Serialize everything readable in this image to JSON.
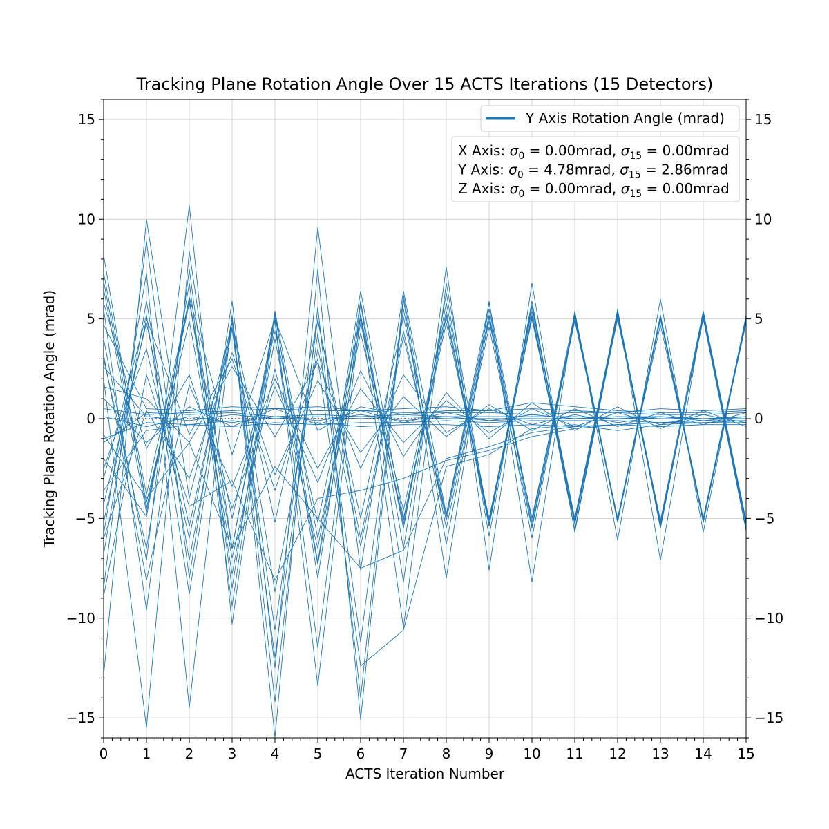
{
  "chart_data": {
    "type": "line",
    "title": "Tracking Plane Rotation Angle Over 15 ACTS Iterations (15 Detectors)",
    "xlabel": "ACTS Iteration Number",
    "ylabel": "Tracking Plane Rotation Angle (mrad)",
    "xlim": [
      0,
      15
    ],
    "ylim": [
      -16,
      16
    ],
    "xticks": [
      "0",
      "1",
      "2",
      "3",
      "4",
      "5",
      "6",
      "7",
      "8",
      "9",
      "10",
      "11",
      "12",
      "13",
      "14",
      "15"
    ],
    "yticks": [
      "−15",
      "−10",
      "−5",
      "0",
      "5",
      "10",
      "15"
    ],
    "yticks_values": [
      -15,
      -10,
      -5,
      0,
      5,
      10,
      15
    ],
    "grid": true,
    "right_axis_mirrors_left": true,
    "line_color": "#1f77b4",
    "legend": {
      "placement": "top-right",
      "entries": [
        {
          "label": "Y Axis Rotation Angle (mrad)",
          "color": "#1f77b4"
        }
      ]
    },
    "stats_box": {
      "placement": "top-right",
      "lines": [
        {
          "axis": "X Axis",
          "sigma0": "0.00",
          "sigma15": "0.00",
          "unit": "mrad"
        },
        {
          "axis": "Y Axis",
          "sigma0": "4.78",
          "sigma15": "2.86",
          "unit": "mrad"
        },
        {
          "axis": "Z Axis",
          "sigma0": "0.00",
          "sigma15": "0.00",
          "unit": "mrad"
        }
      ]
    },
    "series": [
      {
        "values": [
          8.2,
          -4.5,
          5.8,
          -5.0,
          4.4,
          -5.2,
          5.0,
          -5.3,
          5.2,
          -5.4,
          5.6,
          -5.2,
          5.3,
          -5.3,
          5.0,
          -5.6
        ]
      },
      {
        "values": [
          -12.9,
          10.0,
          -4.0,
          4.8,
          -5.2,
          4.9,
          -5.0,
          5.1,
          -4.9,
          5.2,
          -5.0,
          5.0,
          -5.1,
          5.2,
          -5.0,
          5.1
        ]
      },
      {
        "values": [
          6.5,
          -4.7,
          6.0,
          -6.5,
          5.2,
          -7.2,
          6.4,
          -5.0,
          4.8,
          -5.0,
          5.4,
          -5.6,
          5.4,
          -5.5,
          5.3,
          -5.5
        ]
      },
      {
        "values": [
          -8.5,
          8.9,
          -8.0,
          5.9,
          -12.5,
          9.6,
          -7.6,
          6.4,
          -4.8,
          5.8,
          -5.2,
          5.3,
          -5.0,
          5.1,
          -5.1,
          5.0
        ]
      },
      {
        "values": [
          4.0,
          -7.1,
          10.7,
          -10.3,
          5.0,
          -11.5,
          5.8,
          -8.2,
          7.6,
          -7.6,
          6.8,
          -5.7,
          5.5,
          -7.1,
          5.3,
          -5.3
        ]
      },
      {
        "values": [
          -5.8,
          7.3,
          -14.5,
          5.2,
          -16.0,
          7.5,
          -15.1,
          6.0,
          -8.0,
          5.9,
          -8.2,
          5.4,
          -6.1,
          6.0,
          -5.7,
          5.2
        ]
      },
      {
        "values": [
          2.0,
          -15.5,
          8.4,
          -6.5,
          4.9,
          -13.4,
          5.3,
          -10.5,
          6.8,
          -5.3,
          5.7,
          -5.0,
          5.4,
          -5.4,
          5.2,
          -5.6
        ]
      },
      {
        "values": [
          5.5,
          -9.6,
          7.5,
          -8.5,
          5.4,
          -6.0,
          4.3,
          -5.1,
          5.1,
          -5.1,
          5.1,
          -5.3,
          5.2,
          -5.1,
          5.4,
          -5.2
        ]
      },
      {
        "values": [
          -3.0,
          5.2,
          -8.8,
          5.0,
          -14.2,
          5.6,
          -14.0,
          6.2,
          -6.3,
          5.1,
          -6.0,
          5.2,
          -5.2,
          5.0,
          -5.2,
          4.9
        ]
      },
      {
        "values": [
          3.0,
          -6.5,
          6.8,
          -9.4,
          5.3,
          -8.0,
          5.9,
          -6.5,
          6.3,
          -5.9,
          5.9,
          -5.6,
          5.1,
          -5.4,
          5.1,
          -5.2
        ]
      },
      {
        "values": [
          -6.8,
          5.9,
          -7.1,
          4.5,
          -12.0,
          4.3,
          -11.2,
          5.5,
          -5.5,
          4.6,
          -5.5,
          4.9,
          -5.0,
          4.7,
          -5.0,
          4.8
        ]
      },
      {
        "values": [
          6.9,
          -4.2,
          4.9,
          -7.0,
          2.5,
          -6.5,
          5.2,
          -5.5,
          5.8,
          -5.1,
          5.0,
          -5.0,
          5.3,
          -5.2,
          5.1,
          -5.3
        ]
      },
      {
        "values": [
          -2.5,
          3.5,
          -6.0,
          5.0,
          -8.7,
          3.5,
          -6.4,
          4.1,
          -4.9,
          5.5,
          -5.4,
          5.1,
          -5.0,
          5.1,
          -5.2,
          5.0
        ]
      },
      {
        "values": [
          7.3,
          -3.8,
          6.0,
          -7.8,
          4.0,
          -7.3,
          4.8,
          -4.6,
          5.4,
          -5.3,
          5.2,
          -5.1,
          5.0,
          -5.3,
          5.2,
          -5.1
        ]
      },
      {
        "values": [
          -4.3,
          4.8,
          -5.4,
          4.6,
          -10.6,
          5.0,
          -6.0,
          4.4,
          -5.1,
          4.9,
          -5.0,
          5.0,
          -5.1,
          5.0,
          -5.0,
          5.1
        ]
      },
      {
        "values": [
          5.8,
          -1.5,
          2.2,
          -4.5,
          1.6,
          -3.2,
          2.4,
          -1.9,
          1.3,
          -1.0,
          0.8,
          -0.6,
          0.6,
          -0.5,
          0.4,
          -0.4
        ]
      },
      {
        "values": [
          -6.0,
          0.4,
          -3.0,
          3.3,
          -2.8,
          1.9,
          -1.7,
          1.1,
          -0.9,
          0.7,
          -0.6,
          0.5,
          -0.4,
          0.3,
          -0.3,
          0.3
        ]
      },
      {
        "values": [
          3.2,
          -8.1,
          1.7,
          -3.4,
          2.0,
          -2.5,
          1.5,
          -1.2,
          0.9,
          -0.7,
          0.5,
          -0.4,
          0.3,
          -0.3,
          0.2,
          -0.2
        ]
      },
      {
        "values": [
          -8.9,
          2.2,
          -4.4,
          -3.1,
          -8.1,
          -4.0,
          -3.6,
          -3.0,
          -2.1,
          -1.6,
          -0.9,
          -0.5,
          -0.3,
          -0.2,
          -0.2,
          -0.1
        ]
      },
      {
        "values": [
          1.0,
          -1.2,
          0.6,
          -0.4,
          0.5,
          -0.3,
          0.4,
          -0.2,
          0.3,
          -0.1,
          0.2,
          0.0,
          0.1,
          0.1,
          0.0,
          0.1
        ]
      },
      {
        "values": [
          -1.2,
          0.3,
          0.2,
          0.3,
          0.1,
          0.2,
          0.1,
          0.2,
          0.1,
          0.1,
          0.1,
          0.1,
          0.0,
          0.1,
          0.0,
          0.0
        ]
      },
      {
        "values": [
          4.7,
          0.5,
          0.4,
          0.6,
          0.5,
          0.4,
          0.4,
          0.3,
          0.3,
          0.3,
          0.2,
          0.3,
          0.3,
          0.2,
          0.2,
          0.3
        ]
      },
      {
        "values": [
          -3.6,
          -0.6,
          -0.3,
          -0.4,
          -0.2,
          -0.3,
          -0.2,
          -0.2,
          -0.1,
          -0.2,
          -0.1,
          -0.1,
          -0.1,
          -0.2,
          -0.1,
          -0.1
        ]
      },
      {
        "values": [
          2.6,
          0.1,
          -0.1,
          0.2,
          0.0,
          0.1,
          0.0,
          0.1,
          0.0,
          0.0,
          0.0,
          0.0,
          0.1,
          0.0,
          0.0,
          0.0
        ]
      },
      {
        "values": [
          -0.8,
          -4.0,
          -1.2,
          -6.5,
          -2.4,
          -5.0,
          -7.5,
          -6.6,
          -2.0,
          -1.4,
          -0.7,
          -0.4,
          -0.3,
          -0.2,
          -0.1,
          -0.1
        ]
      },
      {
        "values": [
          0.5,
          0.2,
          0.3,
          0.4,
          0.5,
          0.6,
          0.4,
          0.5,
          0.6,
          0.4,
          0.5,
          0.4,
          0.3,
          0.5,
          0.4,
          0.5
        ]
      },
      {
        "values": [
          -1.0,
          -0.2,
          -0.3,
          -0.1,
          -0.3,
          -0.2,
          -0.4,
          -0.3,
          -0.3,
          -0.4,
          -0.3,
          -0.4,
          -0.3,
          -0.4,
          -0.3,
          -0.3
        ]
      },
      {
        "values": [
          1.6,
          1.0,
          -1.2,
          2.6,
          -0.9,
          2.8,
          -2.5,
          2.2,
          -0.7,
          0.5,
          -0.3,
          0.2,
          -0.2,
          0.1,
          -0.1,
          0.1
        ]
      },
      {
        "values": [
          -2.0,
          -4.9,
          6.1,
          -1.8,
          5.0,
          -0.6,
          0.6,
          0.2,
          0.4,
          0.4,
          0.8,
          0.6,
          0.4,
          0.3,
          0.3,
          0.4
        ]
      },
      {
        "values": [
          0.1,
          -0.4,
          0.1,
          -0.2,
          0.1,
          -0.1,
          0.2,
          -0.1,
          0.1,
          -0.1,
          0.0,
          0.0,
          0.0,
          0.0,
          0.0,
          0.0
        ]
      },
      {
        "values": [
          -5.2,
          5.0,
          -0.8,
          3.0,
          -3.6,
          3.0,
          -12.4,
          -10.6,
          -2.4,
          -1.8,
          -0.5,
          -0.3,
          -0.6,
          -0.3,
          -0.2,
          -0.2
        ]
      }
    ]
  }
}
